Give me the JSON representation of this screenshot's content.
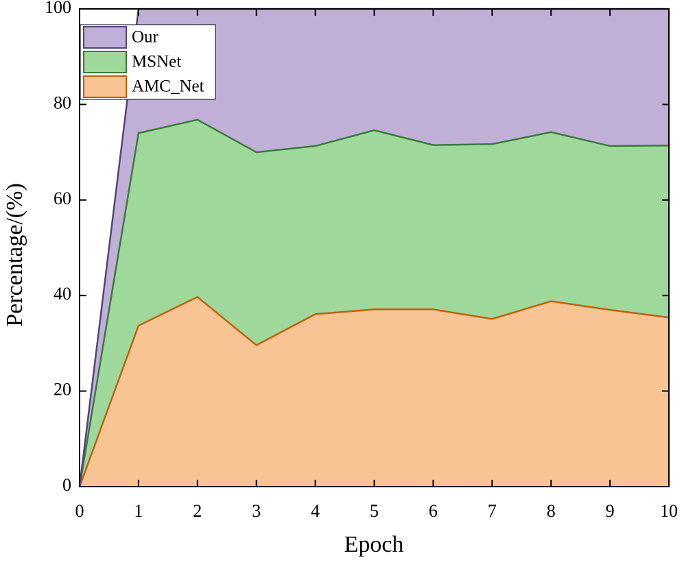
{
  "chart_data": {
    "type": "stacked-area",
    "x_label": "Epoch",
    "y_label": "Percentage/(%)",
    "x": [
      0,
      1,
      2,
      3,
      4,
      5,
      6,
      7,
      8,
      9,
      10
    ],
    "series": [
      {
        "name": "AMC_Net",
        "color": "#f9c494",
        "line_color": "#c0600a",
        "values": [
          0,
          33.7,
          39.7,
          29.6,
          36.1,
          37.1,
          37.1,
          35.1,
          38.8,
          37.0,
          35.4
        ]
      },
      {
        "name": "MSNet",
        "color": "#9fd89b",
        "line_color": "#3a7a3a",
        "values": [
          0,
          40.3,
          37.1,
          40.4,
          35.2,
          37.5,
          34.4,
          36.6,
          35.4,
          34.3,
          36.0
        ]
      },
      {
        "name": "Our",
        "color": "#c0afd6",
        "line_color": "#54457a",
        "values": [
          0,
          26.0,
          23.2,
          30.0,
          28.7,
          25.4,
          28.5,
          28.3,
          25.8,
          28.7,
          28.6
        ]
      }
    ],
    "xlim": [
      0,
      10
    ],
    "xticks": [
      0,
      1,
      2,
      3,
      4,
      5,
      6,
      7,
      8,
      9,
      10
    ],
    "ylim": [
      0,
      100
    ],
    "yticks": [
      0,
      20,
      40,
      60,
      80,
      100
    ],
    "legend": "upper left"
  }
}
